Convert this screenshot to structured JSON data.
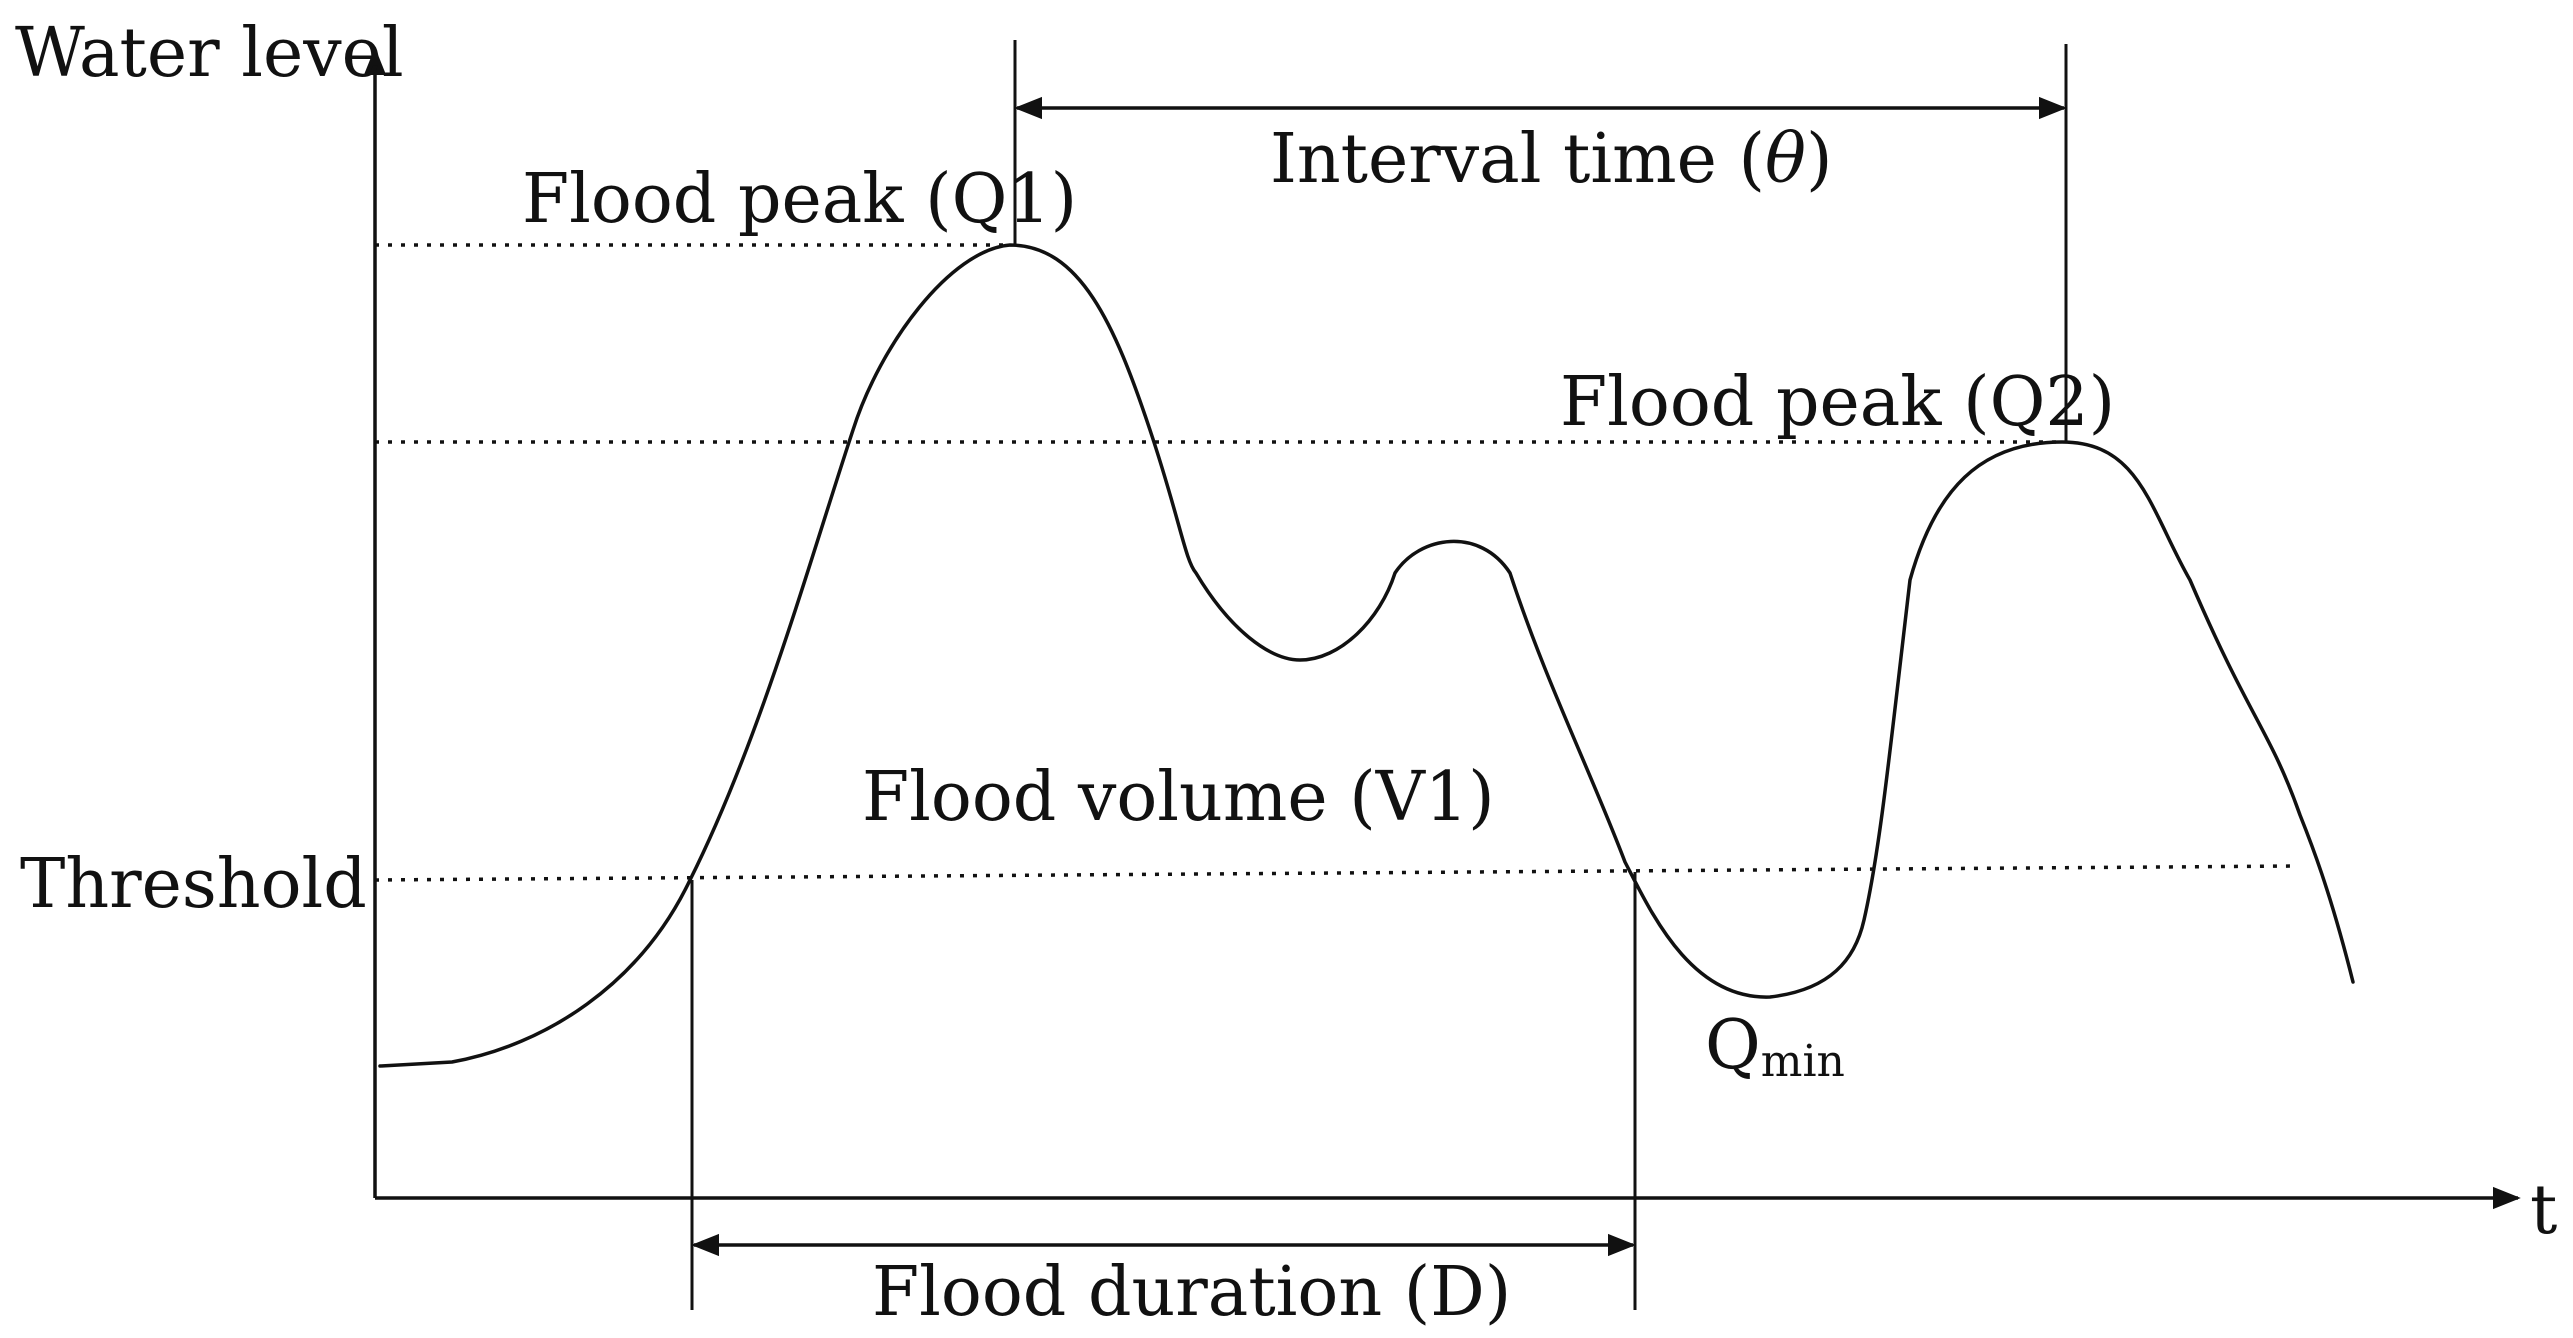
{
  "diagram": {
    "axes": {
      "y_label": "Water level",
      "x_label": "t"
    },
    "levels": {
      "threshold": "Threshold"
    },
    "annotations": {
      "flood_peak_1": "Flood peak (Q1)",
      "flood_peak_2": "Flood peak (Q2)",
      "interval_time_prefix": "Interval time (",
      "interval_time_symbol": "θ",
      "interval_time_suffix": ")",
      "flood_volume": "Flood volume (V1)",
      "flood_duration": "Flood duration (D)",
      "q_min_main": "Q",
      "q_min_sub": "min"
    }
  }
}
